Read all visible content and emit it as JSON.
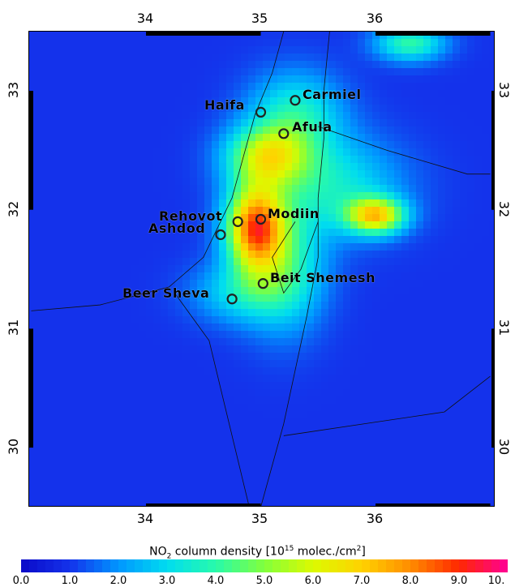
{
  "map": {
    "x_ticks": [
      "34",
      "35",
      "36"
    ],
    "y_ticks": [
      "33",
      "32",
      "31",
      "30"
    ],
    "lon_range": [
      33.0,
      37.0
    ],
    "lat_range": [
      29.5,
      33.5
    ],
    "cities": [
      {
        "name": "Haifa",
        "lon": 35.0,
        "lat": 32.82
      },
      {
        "name": "Carmiel",
        "lon": 35.3,
        "lat": 32.92
      },
      {
        "name": "Afula",
        "lon": 35.2,
        "lat": 32.64
      },
      {
        "name": "Rehovot",
        "lon": 34.8,
        "lat": 31.9
      },
      {
        "name": "Modiin",
        "lon": 35.0,
        "lat": 31.92
      },
      {
        "name": "Ashdod",
        "lon": 34.65,
        "lat": 31.79
      },
      {
        "name": "Beit Shemesh",
        "lon": 35.02,
        "lat": 31.38
      },
      {
        "name": "Beer Sheva",
        "lon": 34.75,
        "lat": 31.25
      }
    ],
    "colors": {
      "low": "#1a2bd6",
      "high": "#ffd000"
    }
  },
  "colorbar": {
    "title_prefix": "NO",
    "title_sub": "2",
    "title_mid": " column density [10",
    "title_sup": "15",
    "title_suffix": " molec./cm",
    "title_sup2": "2",
    "title_end": "]",
    "ticks": [
      "0.0",
      "1.0",
      "2.0",
      "3.0",
      "4.0",
      "5.0",
      "6.0",
      "7.0",
      "8.0",
      "9.0",
      "10."
    ],
    "range": [
      0,
      10
    ]
  }
}
